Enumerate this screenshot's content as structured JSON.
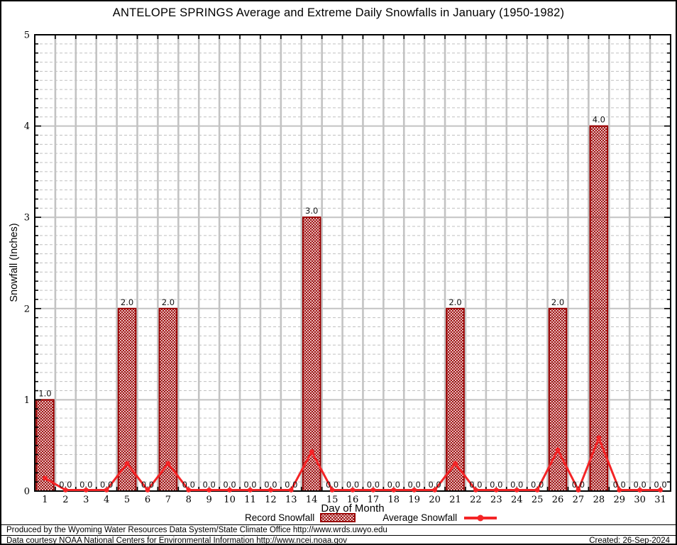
{
  "chart_data": {
    "type": "bar",
    "title": "ANTELOPE SPRINGS Average and Extreme Daily Snowfalls in January (1950-1982)",
    "xlabel": "Day of Month",
    "ylabel": "Snowfall (Inches)",
    "ylim": [
      0,
      5
    ],
    "y_major_step": 1,
    "y_minor_step": 0.1,
    "grid": {
      "major": "solid gray",
      "minor": "dashed gray horizontal",
      "vertical": "solid gray at day boundaries"
    },
    "legend_position": "bottom",
    "value_labels_shown": true,
    "categories": [
      1,
      2,
      3,
      4,
      5,
      6,
      7,
      8,
      9,
      10,
      11,
      12,
      13,
      14,
      15,
      16,
      17,
      18,
      19,
      20,
      21,
      22,
      23,
      24,
      25,
      26,
      27,
      28,
      29,
      30,
      31
    ],
    "series": [
      {
        "name": "Record Snowfall",
        "type": "bar",
        "color": "#990000",
        "values": [
          1.0,
          0.0,
          0.0,
          0.0,
          2.0,
          0.0,
          2.0,
          0.0,
          0.0,
          0.0,
          0.0,
          0.0,
          0.0,
          3.0,
          0.0,
          0.0,
          0.0,
          0.0,
          0.0,
          0.0,
          2.0,
          0.0,
          0.0,
          0.0,
          0.0,
          2.0,
          0.0,
          4.0,
          0.0,
          0.0,
          0.0
        ]
      },
      {
        "name": "Average Snowfall",
        "type": "line",
        "color": "#f42426",
        "values": [
          0.13,
          0,
          0,
          0,
          0.29,
          0,
          0.29,
          0,
          0,
          0,
          0,
          0,
          0,
          0.42,
          0,
          0,
          0,
          0,
          0,
          0,
          0.29,
          0,
          0,
          0,
          0,
          0.44,
          0,
          0.57,
          0,
          0,
          0
        ]
      }
    ]
  },
  "colors": {
    "bar": "#990000",
    "line": "#f42426",
    "grid_major": "#c3c3c3",
    "grid_minor": "#c0c0c0",
    "frame": "#000000"
  },
  "footer": {
    "produced_by": "Produced by the Wyoming Water Resources Data System/State Climate Office http://www.wrds.uwyo.edu",
    "data_courtesy": "Data courtesy NOAA National Centers for Environmental Information http://www.ncei.noaa.gov",
    "created": "Created: 26-Sep-2024"
  }
}
